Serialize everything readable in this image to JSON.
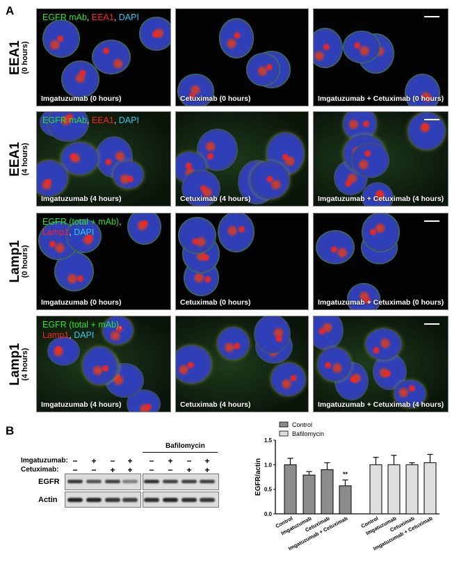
{
  "panel_a": {
    "letter": "A",
    "rows": [
      {
        "marker": "EEA1",
        "time": "(0 hours)",
        "legend": [
          [
            "EGFR mAb",
            ",  "
          ],
          [
            "EEA1",
            ",  "
          ],
          [
            "DAPI",
            ""
          ]
        ],
        "legend_colors": [
          "g",
          "r",
          "c"
        ],
        "captions": [
          "Imgatuzumab (0 hours)",
          "Cetuximab (0 hours)",
          "Imgatuzumab + Cetuximab (0 hours)"
        ]
      },
      {
        "marker": "EEA1",
        "time": "(4 hours)",
        "legend": [
          [
            "EGFR mAb",
            ",  "
          ],
          [
            "EEA1",
            ",  "
          ],
          [
            "DAPI",
            ""
          ]
        ],
        "legend_colors": [
          "g",
          "r",
          "c"
        ],
        "captions": [
          "Imgatuzumab (4 hours)",
          "Cetuximab (4 hours)",
          "Imgatuzumab + Cetuximab (4 hours)"
        ]
      },
      {
        "marker": "Lamp1",
        "time": "(0 hours)",
        "legend": [
          [
            "EGFR (total + mAb)",
            ","
          ],
          [
            "Lamp1",
            ",  "
          ],
          [
            "DAPI",
            ""
          ]
        ],
        "legend_colors": [
          "g",
          "r",
          "c"
        ],
        "captions": [
          "Imgatuzumab (0 hours)",
          "Cetuximab (0 hours)",
          "Imgatuzumab + Cetuximab (0 hours)"
        ]
      },
      {
        "marker": "Lamp1",
        "time": "(4 hours)",
        "legend": [
          [
            "EGFR (total + mAb)",
            ","
          ],
          [
            "Lamp1",
            ",  "
          ],
          [
            "DAPI",
            ""
          ]
        ],
        "legend_colors": [
          "g",
          "r",
          "c"
        ],
        "captions": [
          "Imgatuzumab (4 hours)",
          "Cetuximab (4 hours)",
          "Imgatuzumab + Cetuximab (4 hours)"
        ]
      }
    ],
    "channel_colors": {
      "green": "#2ee02e",
      "red": "#ff2020",
      "blue": "#30c8f0"
    }
  },
  "panel_b": {
    "letter": "B",
    "blot": {
      "group_label": "Bafilomycin",
      "treatments": [
        {
          "label": "Imgatuzumab:",
          "signs": [
            "−",
            "+",
            "−",
            "+",
            "−",
            "+",
            "−",
            "+"
          ]
        },
        {
          "label": "Cetuximab:",
          "signs": [
            "−",
            "−",
            "+",
            "+",
            "−",
            "−",
            "+",
            "+"
          ]
        }
      ],
      "bands": [
        {
          "label": "EGFR",
          "intensity": [
            0.9,
            0.75,
            0.85,
            0.5,
            0.95,
            0.85,
            0.85,
            0.85
          ]
        },
        {
          "label": "Actin",
          "intensity": [
            1,
            1,
            0.9,
            0.85,
            0.95,
            1,
            0.95,
            0.9
          ]
        }
      ]
    }
  },
  "chart_data": {
    "type": "bar",
    "ylabel": "EGFR/actin",
    "ylim": [
      0,
      1.5
    ],
    "yticks": [
      "0.0",
      "0.5",
      "1.0",
      "1.5"
    ],
    "categories": [
      "Control",
      "Imgatuzumab",
      "Cetuximab",
      "Imgatuzumab + Cetuximab"
    ],
    "legend_position": "top-left",
    "series": [
      {
        "name": "Control",
        "color": "#8c8c8c",
        "values": [
          1.0,
          0.79,
          0.9,
          0.57
        ],
        "errors": [
          0.13,
          0.07,
          0.14,
          0.12
        ],
        "annotations": [
          "",
          "",
          "",
          "**"
        ]
      },
      {
        "name": "Bafilomycin",
        "color": "#dedede",
        "values": [
          1.0,
          1.0,
          1.0,
          1.04
        ],
        "errors": [
          0.15,
          0.19,
          0.04,
          0.17
        ],
        "annotations": [
          "",
          "",
          "",
          ""
        ]
      }
    ]
  }
}
